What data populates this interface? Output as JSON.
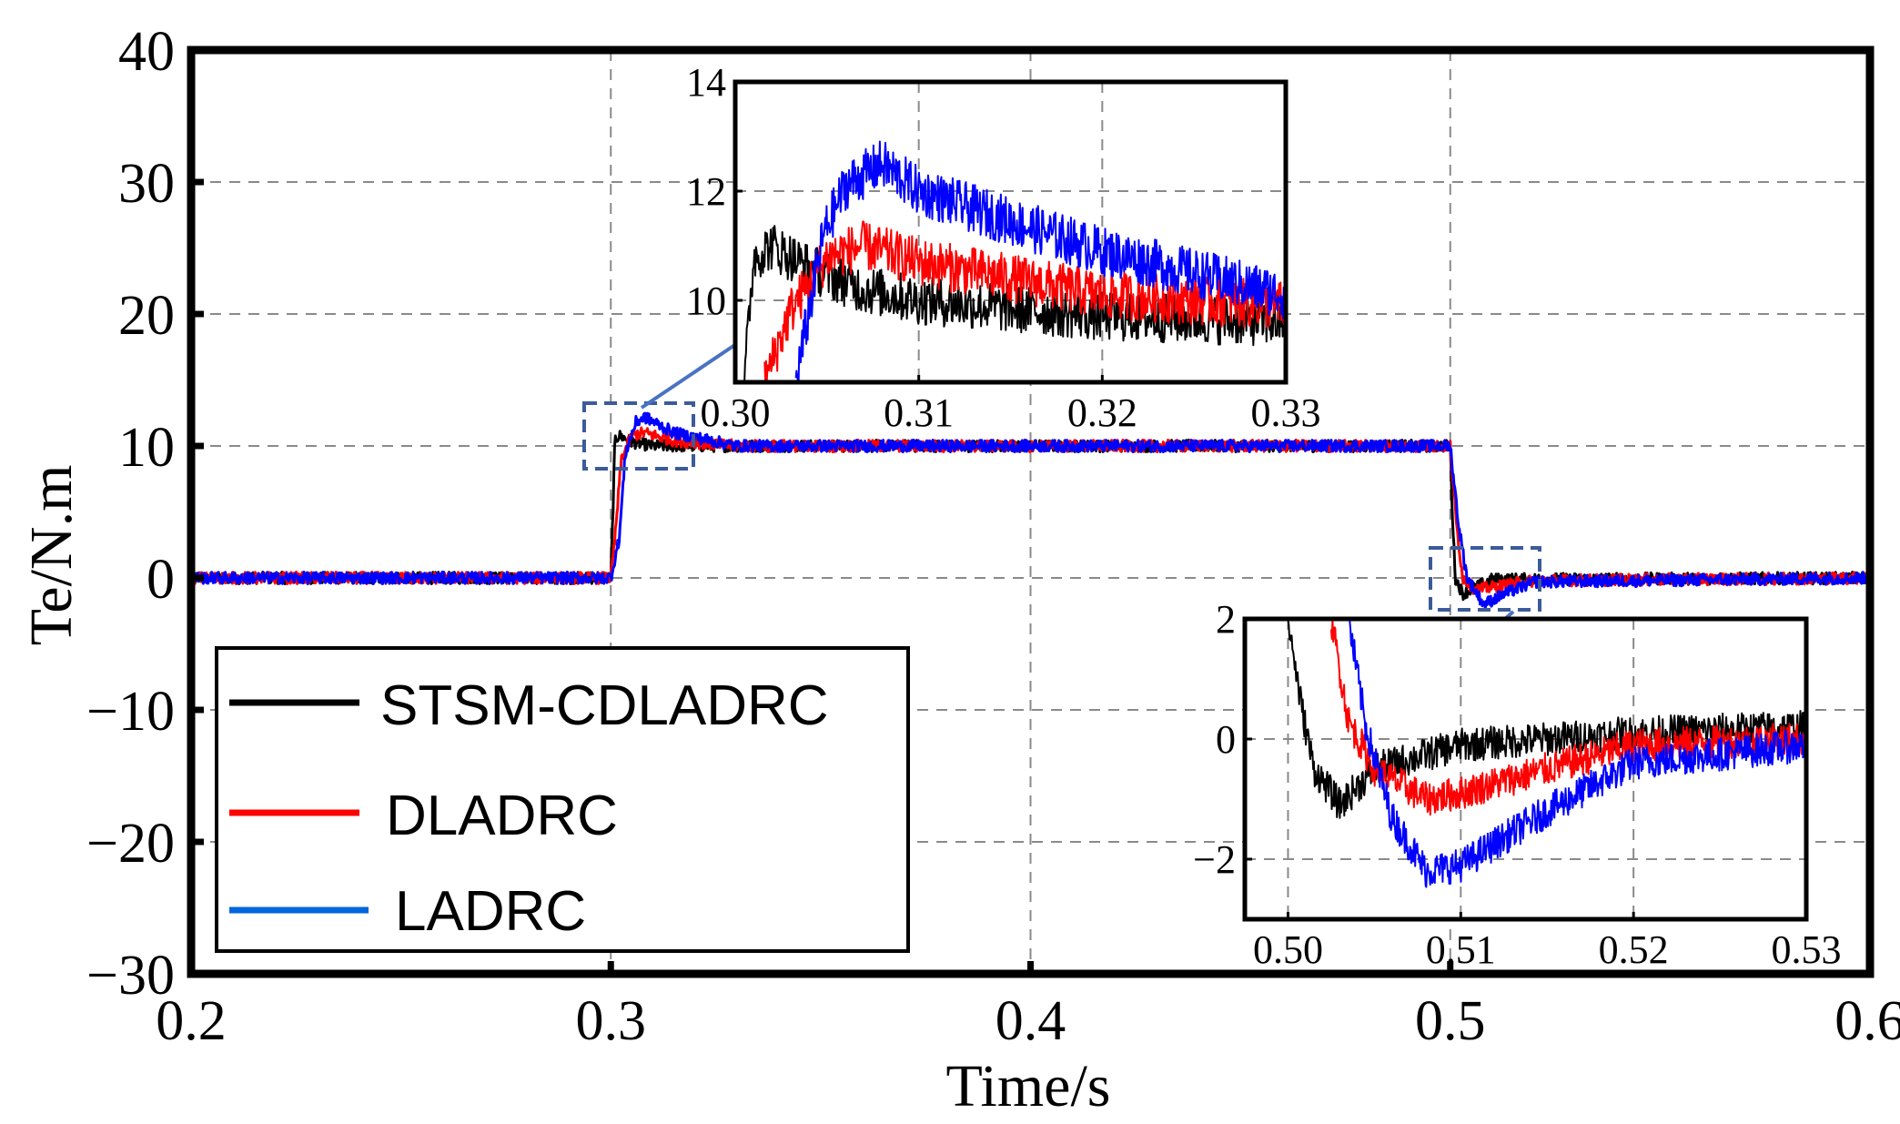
{
  "chart_data": [
    {
      "id": "main",
      "type": "line",
      "title": "",
      "xlabel": "Time/s",
      "ylabel": "Te/N.m",
      "xlim": [
        0.2,
        0.6
      ],
      "ylim": [
        -30,
        40
      ],
      "xticks": [
        0.2,
        0.3,
        0.4,
        0.5,
        0.6
      ],
      "xtick_labels": [
        "0.2",
        "0.3",
        "0.4",
        "0.5",
        "0.6"
      ],
      "yticks": [
        -30,
        -20,
        -10,
        0,
        10,
        20,
        30,
        40
      ],
      "ytick_labels": [
        "−30",
        "−20",
        "−10",
        "0",
        "10",
        "20",
        "30",
        "40"
      ],
      "grid": true,
      "legend": {
        "position": "bottom-left",
        "entries": [
          "STSM-CDLADRC",
          "DLADRC",
          "LADRC"
        ]
      },
      "series": [
        {
          "name": "STSM-CDLADRC",
          "color": "#000000",
          "x": [
            0.2,
            0.3,
            0.3005,
            0.301,
            0.302,
            0.305,
            0.31,
            0.32,
            0.5,
            0.5005,
            0.5012,
            0.503,
            0.51,
            0.6
          ],
          "y": [
            0,
            0,
            5,
            10.5,
            10.8,
            10.3,
            10.0,
            10,
            10,
            5,
            0,
            -1.2,
            -0.1,
            0
          ]
        },
        {
          "name": "DLADRC",
          "color": "#ff0000",
          "x": [
            0.2,
            0.3,
            0.301,
            0.3025,
            0.305,
            0.308,
            0.315,
            0.33,
            0.5,
            0.5015,
            0.503,
            0.506,
            0.51,
            0.52,
            0.6
          ],
          "y": [
            0,
            0,
            3,
            9.0,
            10.8,
            11.0,
            10.4,
            10,
            10,
            4,
            0,
            -0.9,
            -0.7,
            -0.2,
            0
          ]
        },
        {
          "name": "LADRC",
          "color": "#0000ff",
          "x": [
            0.2,
            0.3,
            0.302,
            0.3035,
            0.306,
            0.308,
            0.315,
            0.33,
            0.5,
            0.502,
            0.504,
            0.508,
            0.513,
            0.52,
            0.6
          ],
          "y": [
            0,
            0,
            3,
            9.5,
            11.8,
            12.2,
            11.0,
            10,
            10,
            4,
            0,
            -2.0,
            -1.2,
            -0.3,
            0
          ]
        }
      ]
    },
    {
      "id": "inset-1",
      "type": "line",
      "xlim": [
        0.3,
        0.33
      ],
      "ylim": [
        8.5,
        14
      ],
      "xticks": [
        0.3,
        0.31,
        0.32,
        0.33
      ],
      "xtick_labels": [
        "0.30",
        "0.31",
        "0.32",
        "0.33"
      ],
      "yticks": [
        10,
        12,
        14
      ],
      "ytick_labels": [
        "10",
        "12",
        "14"
      ],
      "grid": true,
      "series": [
        {
          "name": "STSM-CDLADRC",
          "color": "#000000",
          "x": [
            0.3005,
            0.301,
            0.302,
            0.304,
            0.307,
            0.31,
            0.32,
            0.33
          ],
          "y": [
            8.5,
            10.8,
            11.0,
            10.6,
            10.2,
            10.0,
            9.7,
            9.6
          ]
        },
        {
          "name": "DLADRC",
          "color": "#ff0000",
          "x": [
            0.3016,
            0.303,
            0.305,
            0.307,
            0.31,
            0.32,
            0.33
          ],
          "y": [
            8.5,
            9.8,
            10.8,
            11.0,
            10.7,
            10.1,
            9.9
          ]
        },
        {
          "name": "LADRC",
          "color": "#0000ff",
          "x": [
            0.3033,
            0.3048,
            0.306,
            0.308,
            0.31,
            0.32,
            0.33
          ],
          "y": [
            8.5,
            11.2,
            12.1,
            12.5,
            12.0,
            10.9,
            10.1
          ]
        }
      ]
    },
    {
      "id": "inset-2",
      "type": "line",
      "xlim": [
        0.4975,
        0.53
      ],
      "ylim": [
        -3,
        2
      ],
      "xticks": [
        0.5,
        0.51,
        0.52,
        0.53
      ],
      "xtick_labels": [
        "0.50",
        "0.51",
        "0.52",
        "0.53"
      ],
      "yticks": [
        -2,
        0,
        2
      ],
      "ytick_labels": [
        "−2",
        "0",
        "2"
      ],
      "grid": true,
      "series": [
        {
          "name": "STSM-CDLADRC",
          "color": "#000000",
          "x": [
            0.5,
            0.5008,
            0.5015,
            0.503,
            0.505,
            0.51,
            0.52,
            0.53
          ],
          "y": [
            2,
            0.5,
            -0.5,
            -1.1,
            -0.5,
            -0.1,
            0.1,
            0.2
          ]
        },
        {
          "name": "DLADRC",
          "color": "#ff0000",
          "x": [
            0.5025,
            0.5035,
            0.505,
            0.508,
            0.51,
            0.515,
            0.52,
            0.53
          ],
          "y": [
            2,
            0.3,
            -0.5,
            -1.0,
            -0.9,
            -0.5,
            -0.1,
            0.0
          ]
        },
        {
          "name": "LADRC",
          "color": "#0000ff",
          "x": [
            0.5035,
            0.5045,
            0.506,
            0.508,
            0.51,
            0.515,
            0.52,
            0.53
          ],
          "y": [
            2,
            0.2,
            -1.3,
            -2.2,
            -2.1,
            -1.2,
            -0.4,
            -0.1
          ]
        }
      ]
    }
  ]
}
